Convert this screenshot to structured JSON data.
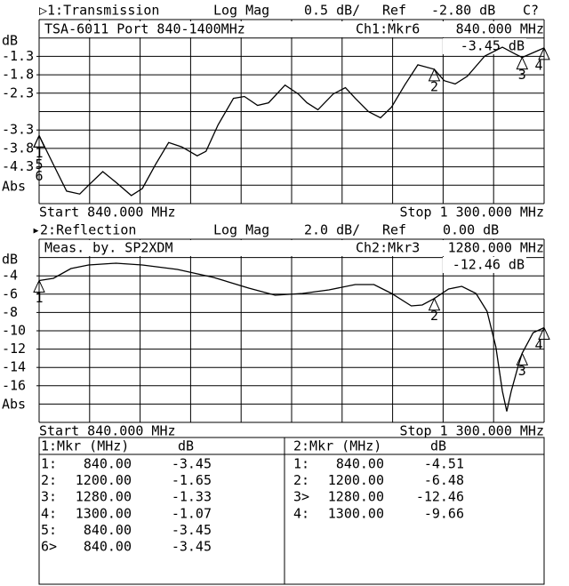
{
  "chart_data": [
    {
      "type": "line",
      "channel_label": "▷1:Transmission",
      "format": "Log Mag",
      "scale": "0.5 dB/",
      "ref_label": "Ref",
      "ref_value": "-2.80 dB",
      "status": "C?",
      "info": "TSA-6011 Port 840-1400MHz",
      "marker_readout": "Ch1:Mkr6",
      "marker_freq": "840.000 MHz",
      "marker_value": "-3.45 dB",
      "y_unit": "dB",
      "y_bottom_label": "Abs",
      "start_label": "Start 840.000 MHz",
      "stop_label": "Stop 1 300.000 MHz",
      "color": "#000000",
      "xlim": [
        840,
        1300
      ],
      "ylim": [
        -5.3,
        -0.3
      ],
      "yticks": [
        -1.3,
        -1.8,
        -2.3,
        -3.3,
        -3.8,
        -4.3
      ],
      "x": [
        840,
        853,
        865,
        877,
        885,
        898,
        910,
        924,
        934,
        946,
        958,
        970,
        984,
        992,
        1003,
        1017,
        1027,
        1039,
        1049,
        1064,
        1076,
        1084,
        1094,
        1108,
        1119,
        1128,
        1140,
        1151,
        1161,
        1173,
        1185,
        1200,
        1209,
        1219,
        1230,
        1246,
        1262,
        1274,
        1280,
        1300
      ],
      "values": [
        -3.45,
        -4.24,
        -4.96,
        -5.04,
        -4.8,
        -4.43,
        -4.72,
        -5.08,
        -4.89,
        -4.24,
        -3.64,
        -3.76,
        -4.0,
        -3.88,
        -3.16,
        -2.44,
        -2.39,
        -2.63,
        -2.56,
        -2.08,
        -2.32,
        -2.56,
        -2.75,
        -2.32,
        -2.15,
        -2.44,
        -2.8,
        -2.97,
        -2.68,
        -2.08,
        -1.53,
        -1.65,
        -1.96,
        -2.05,
        -1.84,
        -1.29,
        -1.05,
        -1.24,
        -1.33,
        -1.07
      ],
      "markers": [
        {
          "label": "1",
          "x": 840,
          "value": -3.45
        },
        {
          "label": "2",
          "x": 1200,
          "value": -1.65
        },
        {
          "label": "3",
          "x": 1280,
          "value": -1.33
        },
        {
          "label": "4",
          "x": 1300,
          "value": -1.07
        },
        {
          "label": "5",
          "x": 840,
          "value": -3.45
        },
        {
          "label": "6",
          "x": 840,
          "value": -3.45
        }
      ]
    },
    {
      "type": "line",
      "channel_label": "▸2:Reflection",
      "format": "Log Mag",
      "scale": "2.0 dB/",
      "ref_label": "Ref",
      "ref_value": "0.00 dB",
      "info": "Meas. by. SP2XDM",
      "marker_readout": "Ch2:Mkr3",
      "marker_freq": "1280.000 MHz",
      "marker_value": "-12.46 dB",
      "y_unit": "dB",
      "y_bottom_label": "Abs",
      "start_label": "Start 840.000 MHz",
      "stop_label": "Stop 1 300.000 MHz",
      "color": "#000000",
      "xlim": [
        840,
        1300
      ],
      "ylim": [
        -20,
        0
      ],
      "yticks": [
        -4,
        -6,
        -8,
        -10,
        -12,
        -14,
        -16
      ],
      "x": [
        840,
        853,
        869,
        885,
        910,
        934,
        966,
        999,
        1031,
        1055,
        1080,
        1104,
        1128,
        1145,
        1161,
        1179,
        1189,
        1200,
        1213,
        1225,
        1238,
        1248,
        1256,
        1262,
        1266,
        1270,
        1276,
        1280,
        1290,
        1300
      ],
      "values": [
        -4.51,
        -4.27,
        -3.2,
        -2.82,
        -2.62,
        -2.82,
        -3.3,
        -4.17,
        -5.34,
        -6.12,
        -5.92,
        -5.53,
        -4.95,
        -4.95,
        -5.92,
        -7.28,
        -7.18,
        -6.48,
        -5.44,
        -5.15,
        -5.92,
        -7.86,
        -11.75,
        -16.6,
        -18.8,
        -16.6,
        -14.0,
        -12.46,
        -10.2,
        -9.66
      ],
      "markers": [
        {
          "label": "1",
          "x": 840,
          "value": -4.51
        },
        {
          "label": "2",
          "x": 1200,
          "value": -6.48
        },
        {
          "label": "3",
          "x": 1280,
          "value": -12.46
        },
        {
          "label": "4",
          "x": 1300,
          "value": -9.66
        }
      ]
    }
  ],
  "marker_table": [
    {
      "header": "1:Mkr (MHz)",
      "unit": "dB",
      "rows": [
        [
          "1:",
          "840.00",
          "-3.45"
        ],
        [
          "2:",
          "1200.00",
          "-1.65"
        ],
        [
          "3:",
          "1280.00",
          "-1.33"
        ],
        [
          "4:",
          "1300.00",
          "-1.07"
        ],
        [
          "5:",
          "840.00",
          "-3.45"
        ],
        [
          "6>",
          "840.00",
          "-3.45"
        ]
      ]
    },
    {
      "header": "2:Mkr (MHz)",
      "unit": "dB",
      "rows": [
        [
          "1:",
          "840.00",
          "-4.51"
        ],
        [
          "2:",
          "1200.00",
          "-6.48"
        ],
        [
          "3>",
          "1280.00",
          "-12.46"
        ],
        [
          "4:",
          "1300.00",
          "-9.66"
        ]
      ]
    }
  ]
}
